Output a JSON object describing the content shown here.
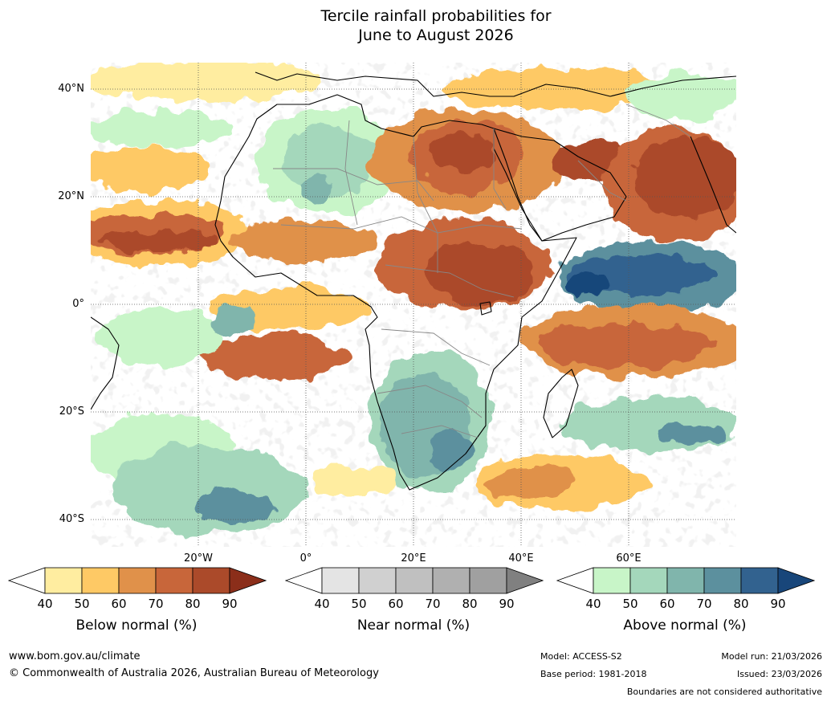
{
  "title": {
    "line1": "Tercile rainfall probabilities for",
    "line2": "June to August 2026"
  },
  "axes": {
    "latitude_labels": [
      "40°N",
      "20°N",
      "0°",
      "20°S",
      "40°S"
    ],
    "longitude_labels": [
      "20°W",
      "0°",
      "20°E",
      "40°E",
      "60°E"
    ]
  },
  "colors": {
    "land_outline": "#000000",
    "borders": "#888888",
    "gridlines": "#555555",
    "below_normal": [
      "#ffffff",
      "#ffeda0",
      "#fec965",
      "#e0914a",
      "#c8663a",
      "#ab4a2a",
      "#8b2e1a"
    ],
    "near_normal": [
      "#ffffff",
      "#e4e4e4",
      "#d0d0d0",
      "#c0c0c0",
      "#b0b0b0",
      "#a0a0a0",
      "#808080"
    ],
    "above_normal": [
      "#ffffff",
      "#c8f5c8",
      "#a4d7bb",
      "#80b5ac",
      "#5c909e",
      "#32628f",
      "#18467a"
    ]
  },
  "legends": [
    {
      "id": "below",
      "label": "Below normal (%)",
      "ticks": [
        "40",
        "50",
        "60",
        "70",
        "80",
        "90"
      ]
    },
    {
      "id": "near",
      "label": "Near normal (%)",
      "ticks": [
        "40",
        "50",
        "60",
        "70",
        "80",
        "90"
      ]
    },
    {
      "id": "above",
      "label": "Above normal (%)",
      "ticks": [
        "40",
        "50",
        "60",
        "70",
        "80",
        "90"
      ]
    }
  ],
  "footer": {
    "website": "www.bom.gov.au/climate",
    "copyright": "© Commonwealth of Australia 2026, Australian Bureau of Meteorology",
    "model": "Model: ACCESS-S2",
    "base_period": "Base period: 1981-2018",
    "model_run": "Model run: 21/03/2026",
    "issued": "Issued: 23/03/2026",
    "disclaimer": "Boundaries are not considered authoritative"
  }
}
